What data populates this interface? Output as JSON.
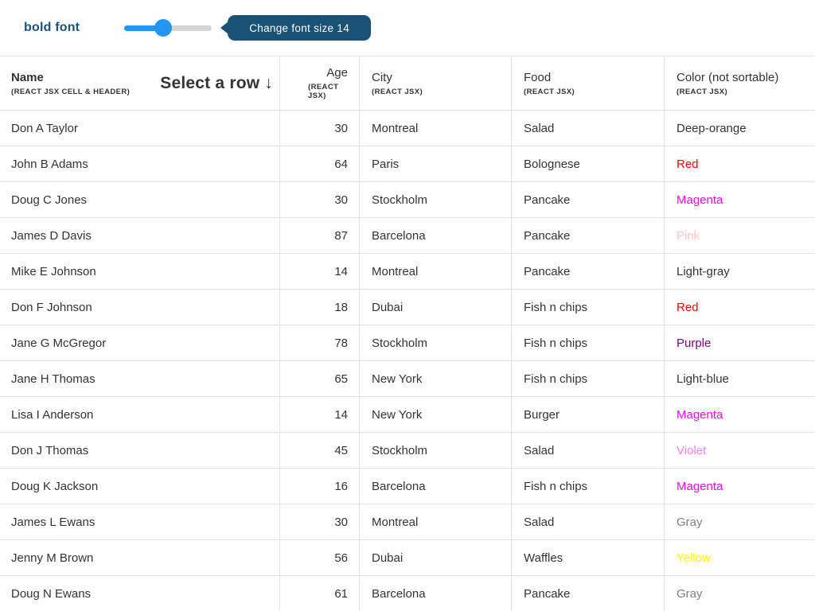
{
  "toolbar": {
    "bold_font_label": "bold font",
    "slider": {
      "value_percent": 44
    },
    "button_label": "Change font size 14"
  },
  "table": {
    "header": {
      "name": {
        "title": "Name",
        "subtitle": "(REACT JSX CELL & HEADER)",
        "select_hint": "Select a row ↓"
      },
      "age": {
        "title": "Age",
        "subtitle": "(REACT JSX)"
      },
      "city": {
        "title": "City",
        "subtitle": "(REACT JSX)"
      },
      "food": {
        "title": "Food",
        "subtitle": "(REACT JSX)"
      },
      "color": {
        "title": "Color (not sortable)",
        "subtitle": "(REACT JSX)"
      }
    },
    "rows": [
      {
        "name": "Don A Taylor",
        "age": "30",
        "city": "Montreal",
        "food": "Salad",
        "color": "Deep-orange",
        "color_hex": "#333333"
      },
      {
        "name": "John B Adams",
        "age": "64",
        "city": "Paris",
        "food": "Bolognese",
        "color": "Red",
        "color_hex": "#ff0000"
      },
      {
        "name": "Doug C Jones",
        "age": "30",
        "city": "Stockholm",
        "food": "Pancake",
        "color": "Magenta",
        "color_hex": "#ff00ff"
      },
      {
        "name": "James D Davis",
        "age": "87",
        "city": "Barcelona",
        "food": "Pancake",
        "color": "Pink",
        "color_hex": "#ffc0cb"
      },
      {
        "name": "Mike E Johnson",
        "age": "14",
        "city": "Montreal",
        "food": "Pancake",
        "color": "Light-gray",
        "color_hex": "#333333"
      },
      {
        "name": "Don F Johnson",
        "age": "18",
        "city": "Dubai",
        "food": "Fish n chips",
        "color": "Red",
        "color_hex": "#ff0000"
      },
      {
        "name": "Jane G McGregor",
        "age": "78",
        "city": "Stockholm",
        "food": "Fish n chips",
        "color": "Purple",
        "color_hex": "#800080"
      },
      {
        "name": "Jane H Thomas",
        "age": "65",
        "city": "New York",
        "food": "Fish n chips",
        "color": "Light-blue",
        "color_hex": "#333333"
      },
      {
        "name": "Lisa I Anderson",
        "age": "14",
        "city": "New York",
        "food": "Burger",
        "color": "Magenta",
        "color_hex": "#ff00ff"
      },
      {
        "name": "Don J Thomas",
        "age": "45",
        "city": "Stockholm",
        "food": "Salad",
        "color": "Violet",
        "color_hex": "#ee82ee"
      },
      {
        "name": "Doug K Jackson",
        "age": "16",
        "city": "Barcelona",
        "food": "Fish n chips",
        "color": "Magenta",
        "color_hex": "#ff00ff"
      },
      {
        "name": "James L Ewans",
        "age": "30",
        "city": "Montreal",
        "food": "Salad",
        "color": "Gray",
        "color_hex": "#808080"
      },
      {
        "name": "Jenny M Brown",
        "age": "56",
        "city": "Dubai",
        "food": "Waffles",
        "color": "Yellow",
        "color_hex": "#ffff00"
      },
      {
        "name": "Doug N Ewans",
        "age": "61",
        "city": "Barcelona",
        "food": "Pancake",
        "color": "Gray",
        "color_hex": "#808080"
      }
    ]
  },
  "colors": {
    "accent_navy": "#1a5276",
    "slider_blue": "#2196f3",
    "text_dark": "#333333",
    "border_light": "#e3e3e3"
  }
}
